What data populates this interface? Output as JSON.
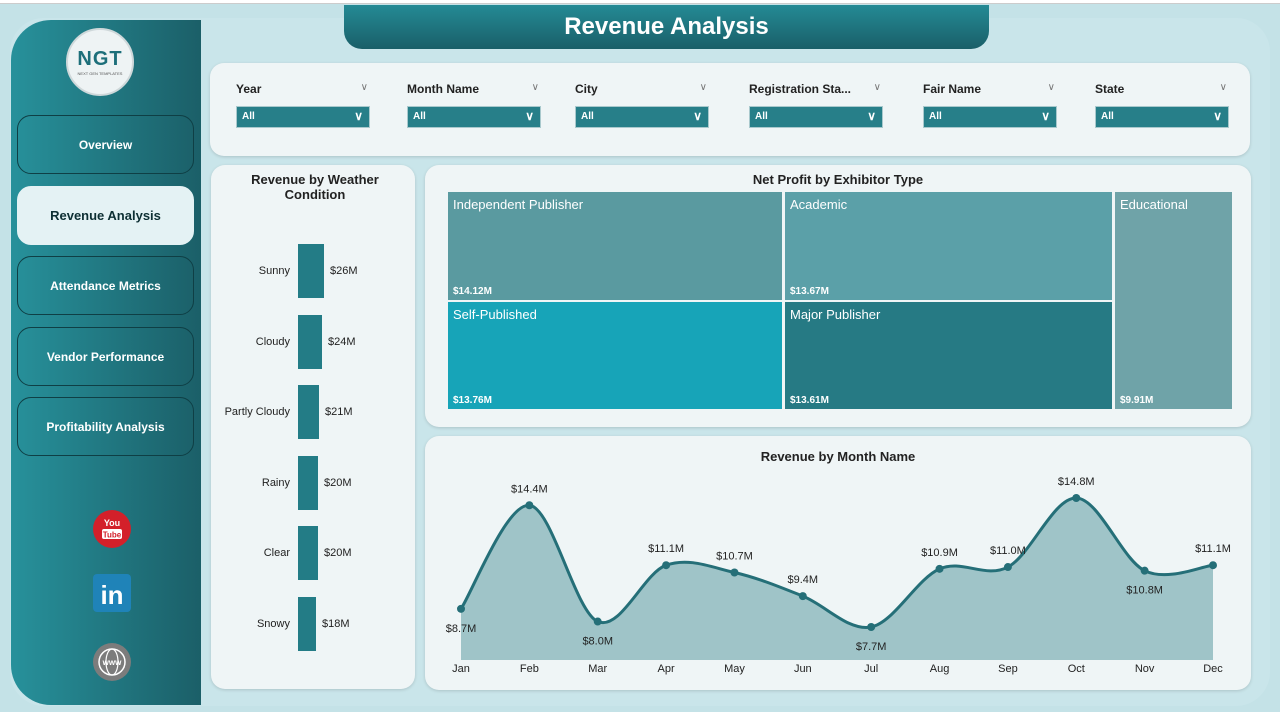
{
  "title": "Revenue Analysis",
  "logo": {
    "text": "NGT",
    "subtext": "NEXT GEN TEMPLATES"
  },
  "nav": [
    {
      "label": "Overview",
      "active": false
    },
    {
      "label": "Revenue Analysis",
      "active": true
    },
    {
      "label": "Attendance Metrics",
      "active": false
    },
    {
      "label": "Vendor Performance",
      "active": false
    },
    {
      "label": "Profitability Analysis",
      "active": false
    }
  ],
  "social": [
    {
      "icon": "youtube-icon",
      "text": "YouTube"
    },
    {
      "icon": "linkedin-icon",
      "text": "in"
    },
    {
      "icon": "globe-icon",
      "text": "WWW"
    }
  ],
  "filters": [
    {
      "label": "Year",
      "value": "All"
    },
    {
      "label": "Month Name",
      "value": "All"
    },
    {
      "label": "City",
      "value": "All"
    },
    {
      "label": "Registration Sta...",
      "value": "All"
    },
    {
      "label": "Fair Name",
      "value": "All"
    },
    {
      "label": "State",
      "value": "All"
    }
  ],
  "colors": {
    "accent": "#237c86",
    "sidebar": "#1f7780"
  },
  "chart_data": [
    {
      "type": "bar",
      "title": "Revenue by Weather Condition",
      "orientation": "horizontal",
      "categories": [
        "Sunny",
        "Cloudy",
        "Partly Cloudy",
        "Rainy",
        "Clear",
        "Snowy"
      ],
      "values": [
        26,
        24,
        21,
        20,
        20,
        18
      ],
      "labels": [
        "$26M",
        "$24M",
        "$21M",
        "$20M",
        "$20M",
        "$18M"
      ],
      "unit": "$M"
    },
    {
      "type": "treemap",
      "title": "Net Profit by Exhibitor Type",
      "items": [
        {
          "name": "Independent Publisher",
          "value": 14.12,
          "label": "$14.12M",
          "color": "#5a9aa0"
        },
        {
          "name": "Academic",
          "value": 13.67,
          "label": "$13.67M",
          "color": "#5ba0a8"
        },
        {
          "name": "Educational",
          "value": 9.91,
          "label": "$9.91M",
          "color": "#6fa3a8"
        },
        {
          "name": "Self-Published",
          "value": 13.76,
          "label": "$13.76M",
          "color": "#17a4b8"
        },
        {
          "name": "Major Publisher",
          "value": 13.61,
          "label": "$13.61M",
          "color": "#267a84"
        }
      ]
    },
    {
      "type": "area",
      "title": "Revenue by Month Name",
      "categories": [
        "Jan",
        "Feb",
        "Mar",
        "Apr",
        "May",
        "Jun",
        "Jul",
        "Aug",
        "Sep",
        "Oct",
        "Nov",
        "Dec"
      ],
      "values": [
        8.7,
        14.4,
        8.0,
        11.1,
        10.7,
        9.4,
        7.7,
        10.9,
        11.0,
        14.8,
        10.8,
        11.1
      ],
      "labels": [
        "$8.7M",
        "$14.4M",
        "$8.0M",
        "$11.1M",
        "$10.7M",
        "$9.4M",
        "$7.7M",
        "$10.9M",
        "$11.0M",
        "$14.8M",
        "$10.8M",
        "$11.1M"
      ],
      "grid": false,
      "color": "#256f78"
    }
  ]
}
